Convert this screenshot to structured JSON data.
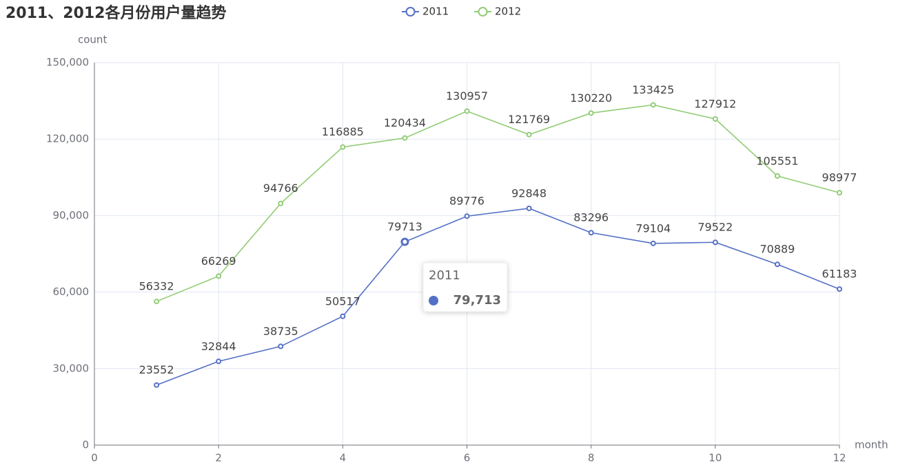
{
  "chart_data": {
    "type": "line",
    "title": "2011、2012各月份用户量趋势",
    "x_label": "month",
    "y_label": "count",
    "x": [
      1,
      2,
      3,
      4,
      5,
      6,
      7,
      8,
      9,
      10,
      11,
      12
    ],
    "series": [
      {
        "name": "2011",
        "color": "#5470c6",
        "values": [
          23552,
          32844,
          38735,
          50517,
          79713,
          89776,
          92848,
          83296,
          79104,
          79522,
          70889,
          61183
        ]
      },
      {
        "name": "2012",
        "color": "#91cc75",
        "values": [
          56332,
          66269,
          94766,
          116885,
          120434,
          130957,
          121769,
          130220,
          133425,
          127912,
          105551,
          98977
        ]
      }
    ],
    "xlim": [
      0,
      12
    ],
    "xticks": [
      0,
      2,
      4,
      6,
      8,
      10,
      12
    ],
    "ylim": [
      0,
      150000
    ],
    "yticks": [
      0,
      {
        "value": 30000,
        "label": "30,000"
      },
      {
        "value": 60000,
        "label": "60,000"
      },
      {
        "value": 90000,
        "label": "90,000"
      },
      {
        "value": 120000,
        "label": "120,000"
      },
      {
        "value": 150000,
        "label": "150,000"
      }
    ],
    "grid": true,
    "legend": "top",
    "tooltip": {
      "title": "2011",
      "value": {
        "value": 79713,
        "label": "79,713"
      }
    }
  }
}
